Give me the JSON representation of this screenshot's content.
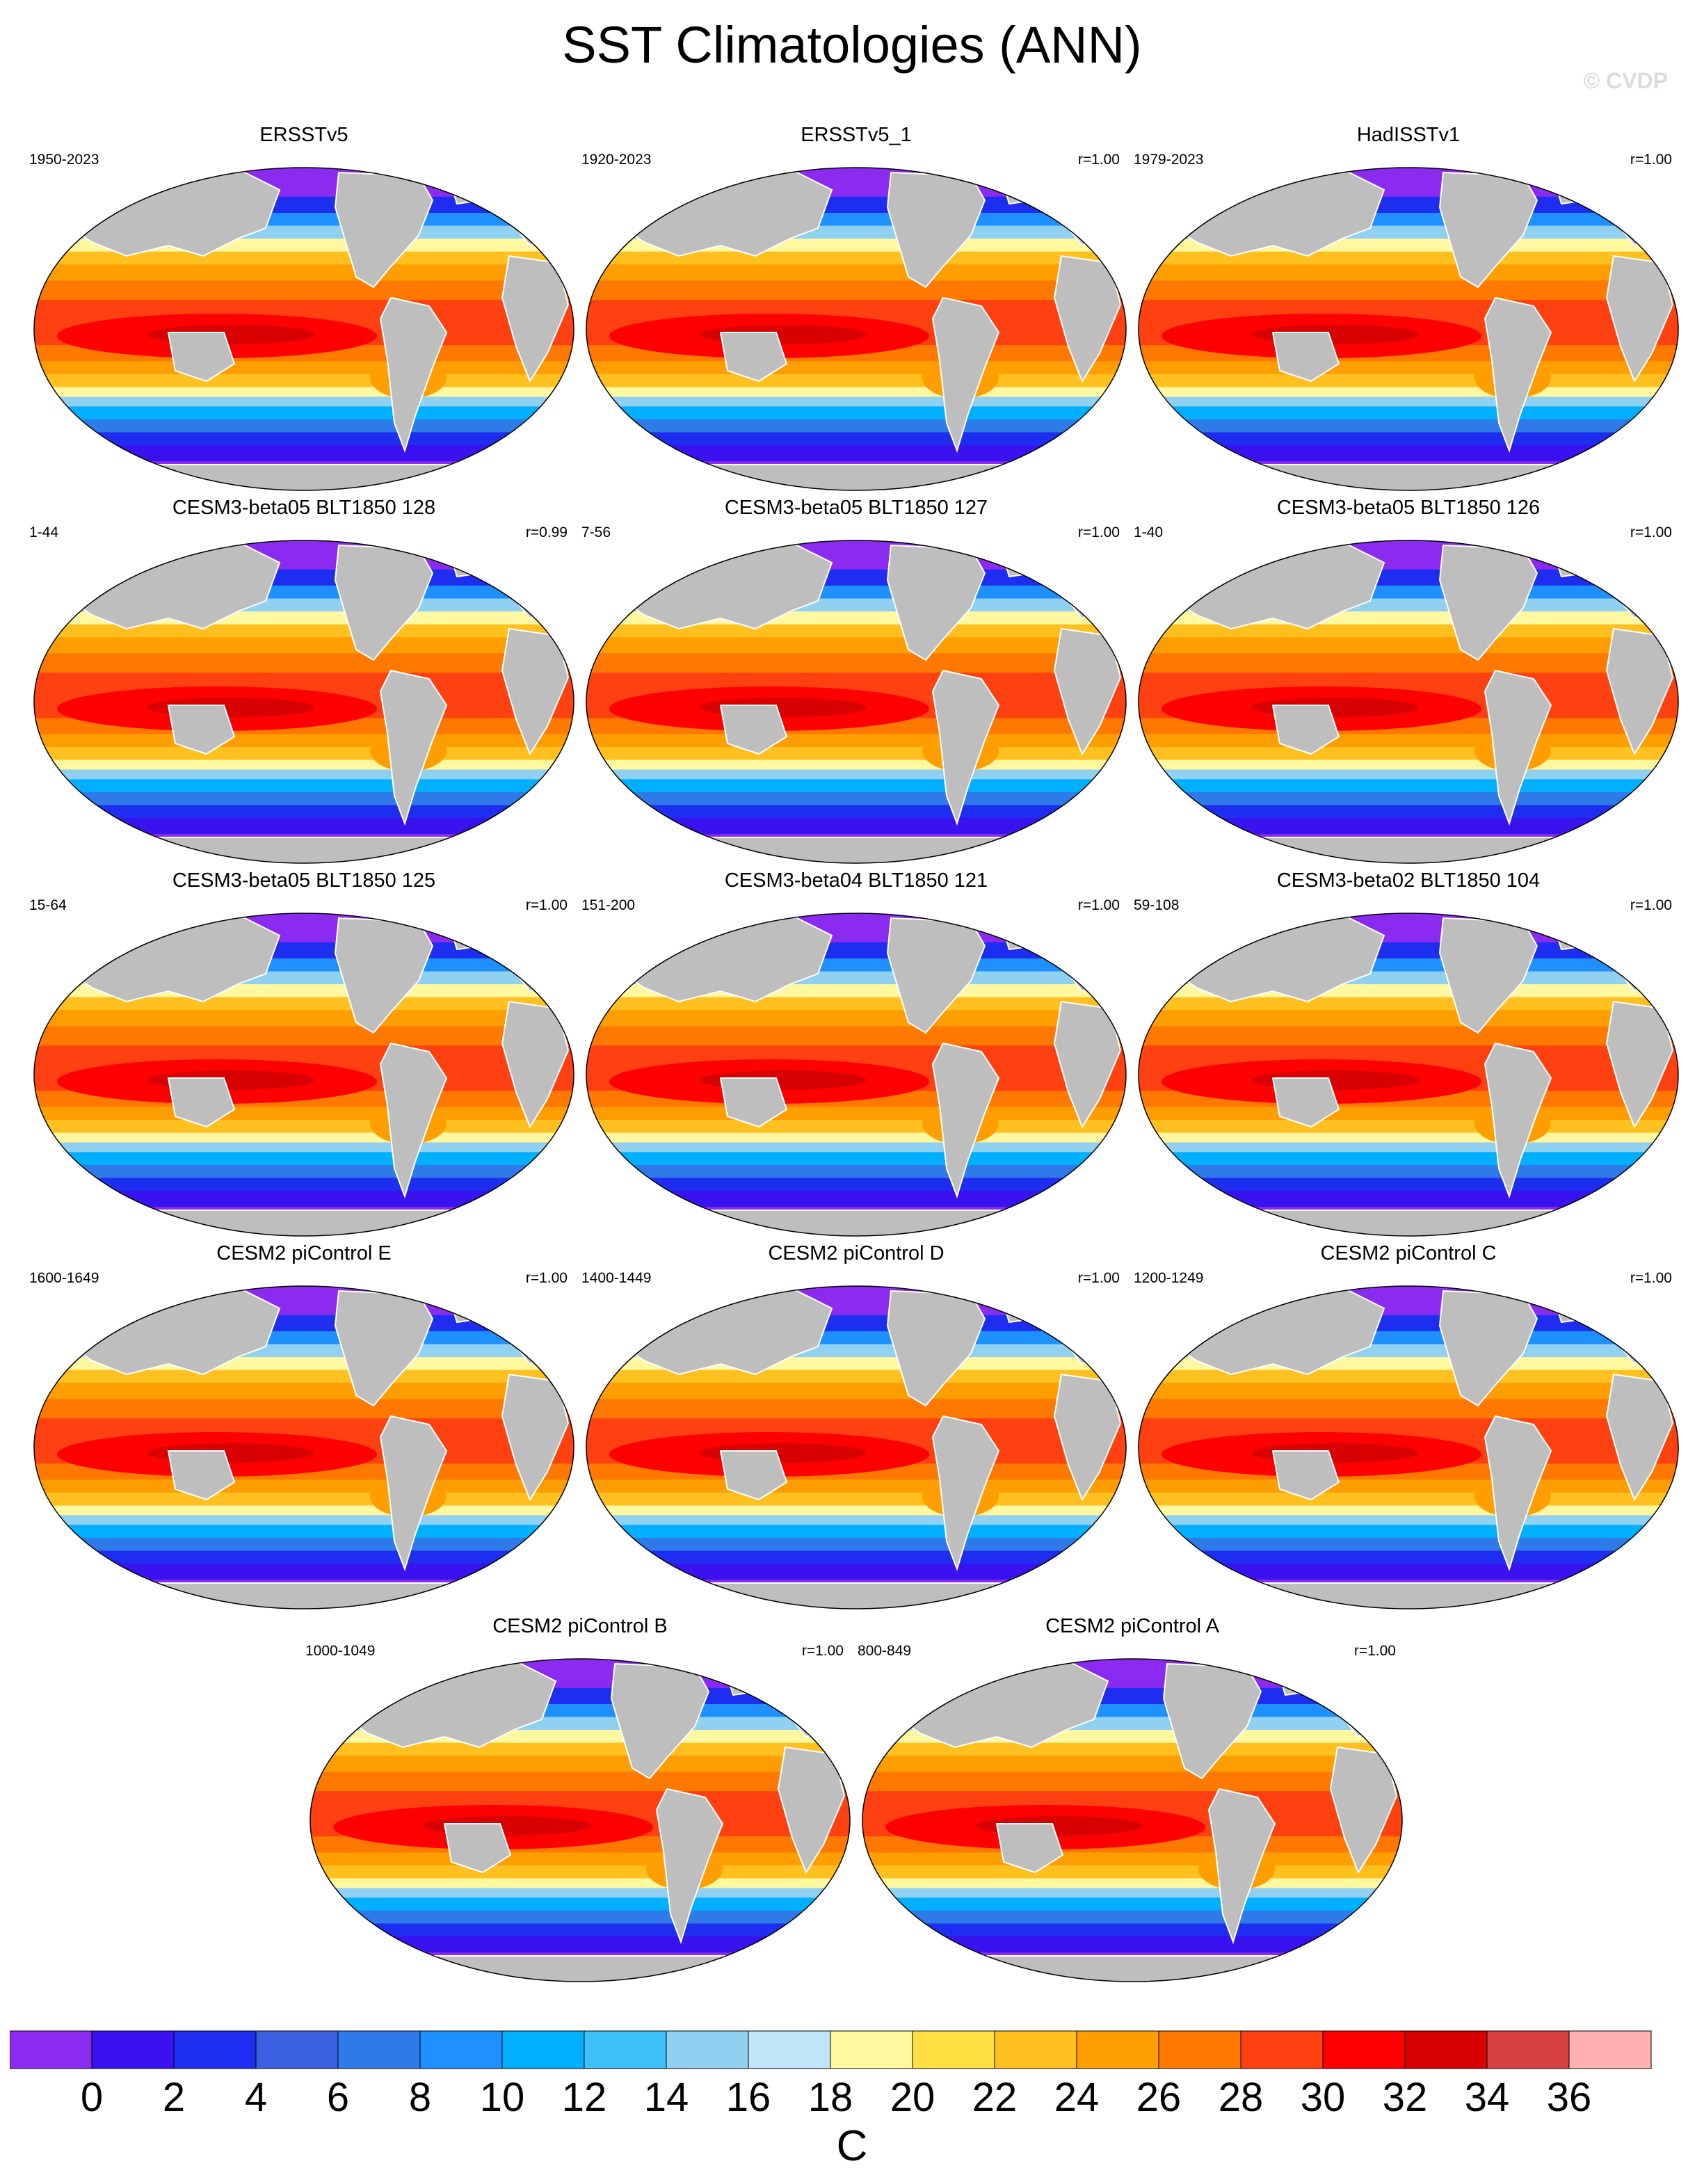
{
  "title": "SST Climatologies (ANN)",
  "watermark": "© CVDP",
  "chart_data": {
    "type": "heatmap",
    "variable": "SST",
    "season": "ANN",
    "units": "C",
    "colorbar": {
      "ticks": [
        0,
        2,
        4,
        6,
        8,
        10,
        12,
        14,
        16,
        18,
        20,
        22,
        24,
        26,
        28,
        30,
        32,
        34,
        36
      ],
      "colors": [
        "#8c2bf0",
        "#3a12f0",
        "#1e2ef0",
        "#3a60e0",
        "#2e7ae8",
        "#1e90ff",
        "#00b0ff",
        "#3cc0f8",
        "#90d0f0",
        "#c0e4f8",
        "#fff8a0",
        "#ffe040",
        "#ffc020",
        "#ff9e00",
        "#ff7800",
        "#ff4010",
        "#ff0000",
        "#d80000",
        "#d84040",
        "#ffb0b0"
      ]
    },
    "panels": [
      {
        "name": "ERSSTv5",
        "period": "1950-2023",
        "r": ""
      },
      {
        "name": "ERSSTv5_1",
        "period": "1920-2023",
        "r": "r=1.00"
      },
      {
        "name": "HadISSTv1",
        "period": "1979-2023",
        "r": "r=1.00"
      },
      {
        "name": "CESM3-beta05 BLT1850 128",
        "period": "1-44",
        "r": "r=0.99"
      },
      {
        "name": "CESM3-beta05 BLT1850 127",
        "period": "7-56",
        "r": "r=1.00"
      },
      {
        "name": "CESM3-beta05 BLT1850 126",
        "period": "1-40",
        "r": "r=1.00"
      },
      {
        "name": "CESM3-beta05 BLT1850 125",
        "period": "15-64",
        "r": "r=1.00"
      },
      {
        "name": "CESM3-beta04 BLT1850 121",
        "period": "151-200",
        "r": "r=1.00"
      },
      {
        "name": "CESM3-beta02 BLT1850 104",
        "period": "59-108",
        "r": "r=1.00"
      },
      {
        "name": "CESM2 piControl E",
        "period": "1600-1649",
        "r": "r=1.00"
      },
      {
        "name": "CESM2 piControl D",
        "period": "1400-1449",
        "r": "r=1.00"
      },
      {
        "name": "CESM2 piControl C",
        "period": "1200-1249",
        "r": "r=1.00"
      },
      {
        "name": "CESM2 piControl B",
        "period": "1000-1049",
        "r": "r=1.00"
      },
      {
        "name": "CESM2 piControl A",
        "period": "800-849",
        "r": "r=1.00"
      }
    ]
  }
}
